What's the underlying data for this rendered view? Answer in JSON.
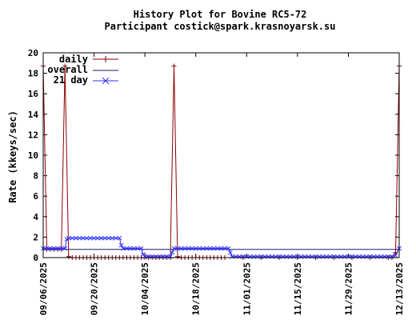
{
  "chart_data": {
    "type": "line",
    "title": "History Plot for Bovine RC5-72",
    "subtitle": "Participant costick@spark.krasnoyarsk.su",
    "ylabel": "Rate (kkeys/sec)",
    "xlabel": "",
    "ylim": [
      0,
      20
    ],
    "y_ticks": [
      0,
      2,
      4,
      6,
      8,
      10,
      12,
      14,
      16,
      18,
      20
    ],
    "x_tick_labels": [
      "09/06/2025",
      "09/20/2025",
      "10/04/2025",
      "10/18/2025",
      "11/01/2025",
      "11/15/2025",
      "11/29/2025",
      "12/13/2025"
    ],
    "x_range_days": [
      0,
      98
    ],
    "x_start_date": "09/06/2025",
    "legend_position": "top-left",
    "colors": {
      "daily": "#8b0000",
      "overall": "#191970",
      "21day": "#3333ff"
    },
    "series": [
      {
        "name": "daily",
        "points": [
          [
            0,
            18.7
          ],
          [
            1,
            0.8
          ],
          [
            2,
            0.8
          ],
          [
            3,
            0.8
          ],
          [
            4,
            0.8
          ],
          [
            5,
            0.8
          ],
          [
            6,
            18.7
          ],
          [
            7,
            0.1
          ],
          [
            8,
            0
          ],
          [
            9,
            0
          ],
          [
            10,
            0
          ],
          [
            11,
            0
          ],
          [
            12,
            0
          ],
          [
            13,
            0
          ],
          [
            14,
            0
          ],
          [
            15,
            0
          ],
          [
            16,
            0
          ],
          [
            17,
            0
          ],
          [
            18,
            0
          ],
          [
            19,
            0
          ],
          [
            20,
            0
          ],
          [
            21,
            0
          ],
          [
            22,
            0
          ],
          [
            23,
            0
          ],
          [
            24,
            0
          ],
          [
            25,
            0
          ],
          [
            26,
            0
          ],
          [
            27,
            0
          ],
          [
            28,
            0
          ],
          [
            29,
            0
          ],
          [
            30,
            0
          ],
          [
            31,
            0
          ],
          [
            32,
            0
          ],
          [
            33,
            0
          ],
          [
            34,
            0
          ],
          [
            35,
            0
          ],
          [
            36,
            18.7
          ],
          [
            37,
            0.1
          ],
          [
            38,
            0
          ],
          [
            39,
            0
          ],
          [
            40,
            0
          ],
          [
            41,
            0
          ],
          [
            42,
            0
          ],
          [
            43,
            0
          ],
          [
            44,
            0
          ],
          [
            45,
            0
          ],
          [
            46,
            0
          ],
          [
            47,
            0
          ],
          [
            48,
            0
          ],
          [
            49,
            0
          ],
          [
            50,
            0
          ],
          [
            55,
            0
          ],
          [
            60,
            0
          ],
          [
            65,
            0
          ],
          [
            70,
            0
          ],
          [
            75,
            0
          ],
          [
            80,
            0
          ],
          [
            85,
            0
          ],
          [
            90,
            0
          ],
          [
            95,
            0
          ],
          [
            96,
            0
          ],
          [
            97,
            0.5
          ],
          [
            98,
            18.7
          ]
        ]
      },
      {
        "name": "overall",
        "points": [
          [
            0,
            0.8
          ],
          [
            98,
            0.8
          ]
        ]
      },
      {
        "name": "21 day",
        "points": [
          [
            0,
            0.9
          ],
          [
            1,
            0.9
          ],
          [
            2,
            0.9
          ],
          [
            3,
            0.9
          ],
          [
            4,
            0.9
          ],
          [
            5,
            0.9
          ],
          [
            6,
            0.9
          ],
          [
            6.5,
            1.8
          ],
          [
            7,
            1.9
          ],
          [
            8,
            1.9
          ],
          [
            9,
            1.9
          ],
          [
            10,
            1.9
          ],
          [
            11,
            1.9
          ],
          [
            12,
            1.9
          ],
          [
            13,
            1.9
          ],
          [
            14,
            1.9
          ],
          [
            15,
            1.9
          ],
          [
            16,
            1.9
          ],
          [
            17,
            1.9
          ],
          [
            18,
            1.9
          ],
          [
            19,
            1.9
          ],
          [
            20,
            1.9
          ],
          [
            21,
            1.9
          ],
          [
            21.5,
            1.2
          ],
          [
            22,
            0.9
          ],
          [
            23,
            0.9
          ],
          [
            24,
            0.9
          ],
          [
            25,
            0.9
          ],
          [
            26,
            0.9
          ],
          [
            27,
            0.9
          ],
          [
            27.5,
            0.3
          ],
          [
            28,
            0.1
          ],
          [
            29,
            0.1
          ],
          [
            30,
            0.1
          ],
          [
            31,
            0.1
          ],
          [
            32,
            0.1
          ],
          [
            33,
            0.1
          ],
          [
            34,
            0.1
          ],
          [
            35,
            0.1
          ],
          [
            35.5,
            0.5
          ],
          [
            36,
            0.9
          ],
          [
            37,
            0.9
          ],
          [
            38,
            0.9
          ],
          [
            39,
            0.9
          ],
          [
            40,
            0.9
          ],
          [
            41,
            0.9
          ],
          [
            42,
            0.9
          ],
          [
            43,
            0.9
          ],
          [
            44,
            0.9
          ],
          [
            45,
            0.9
          ],
          [
            46,
            0.9
          ],
          [
            47,
            0.9
          ],
          [
            48,
            0.9
          ],
          [
            49,
            0.9
          ],
          [
            50,
            0.9
          ],
          [
            51,
            0.9
          ],
          [
            51.5,
            0.5
          ],
          [
            52,
            0.1
          ],
          [
            53,
            0.1
          ],
          [
            54,
            0.1
          ],
          [
            55,
            0.1
          ],
          [
            56,
            0.1
          ],
          [
            57,
            0.1
          ],
          [
            58,
            0.1
          ],
          [
            59,
            0.1
          ],
          [
            60,
            0.1
          ],
          [
            61,
            0.1
          ],
          [
            62,
            0.1
          ],
          [
            63,
            0.1
          ],
          [
            64,
            0.1
          ],
          [
            65,
            0.1
          ],
          [
            66,
            0.1
          ],
          [
            67,
            0.1
          ],
          [
            68,
            0.1
          ],
          [
            69,
            0.1
          ],
          [
            70,
            0.1
          ],
          [
            71,
            0.1
          ],
          [
            72,
            0.1
          ],
          [
            73,
            0.1
          ],
          [
            74,
            0.1
          ],
          [
            75,
            0.1
          ],
          [
            76,
            0.1
          ],
          [
            77,
            0.1
          ],
          [
            78,
            0.1
          ],
          [
            79,
            0.1
          ],
          [
            80,
            0.1
          ],
          [
            81,
            0.1
          ],
          [
            82,
            0.1
          ],
          [
            83,
            0.1
          ],
          [
            84,
            0.1
          ],
          [
            85,
            0.1
          ],
          [
            86,
            0.1
          ],
          [
            87,
            0.1
          ],
          [
            88,
            0.1
          ],
          [
            89,
            0.1
          ],
          [
            90,
            0.1
          ],
          [
            91,
            0.1
          ],
          [
            92,
            0.1
          ],
          [
            93,
            0.1
          ],
          [
            94,
            0.1
          ],
          [
            95,
            0.1
          ],
          [
            96,
            0.1
          ],
          [
            97,
            0.2
          ],
          [
            98,
            0.9
          ]
        ]
      }
    ],
    "legend": [
      "daily",
      "overall",
      "21 day"
    ]
  }
}
